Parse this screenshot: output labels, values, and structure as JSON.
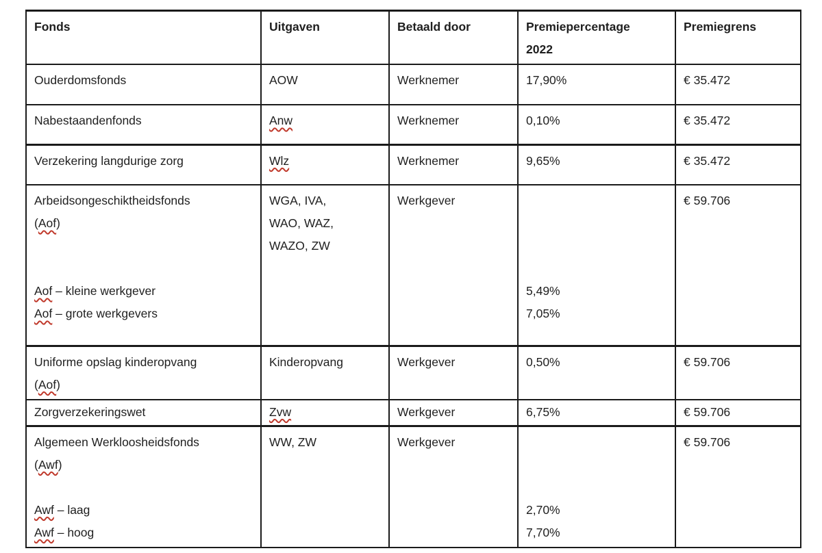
{
  "colors": {
    "misspell_underline": "#c0392b",
    "border": "#1a1a1a",
    "text": "#1f1f1f"
  },
  "table": {
    "headers": [
      {
        "id": "fonds",
        "label": "Fonds",
        "lines": [
          [
            "Fonds"
          ]
        ]
      },
      {
        "id": "uitgaven",
        "label": "Uitgaven",
        "lines": [
          [
            "Uitgaven"
          ]
        ]
      },
      {
        "id": "betaald-door",
        "label": "Betaald door",
        "lines": [
          [
            "Betaald door"
          ]
        ]
      },
      {
        "id": "premiepercentage-2022",
        "label": "Premiepercentage 2022",
        "lines": [
          [
            "Premiepercentage"
          ],
          [
            "2022"
          ]
        ]
      },
      {
        "id": "premiegrens",
        "label": "Premiegrens",
        "lines": [
          [
            "Premiegrens"
          ]
        ]
      }
    ],
    "rows": [
      {
        "id": "ouderdomsfonds",
        "cells": [
          [
            [
              "Ouderdomsfonds"
            ]
          ],
          [
            [
              "AOW"
            ]
          ],
          [
            [
              "Werknemer"
            ]
          ],
          [
            [
              "17,90%"
            ]
          ],
          [
            [
              "€ 35.472"
            ]
          ]
        ]
      },
      {
        "id": "nabestaandenfonds",
        "cells": [
          [
            [
              "Nabestaandenfonds"
            ]
          ],
          [
            [
              {
                "t": "Anw",
                "m": true
              }
            ]
          ],
          [
            [
              "Werknemer"
            ]
          ],
          [
            [
              "0,10%"
            ]
          ],
          [
            [
              "€ 35.472"
            ]
          ]
        ]
      },
      {
        "id": "verzekering-langdurige-zorg",
        "cells": [
          [
            [
              "Verzekering langdurige zorg"
            ]
          ],
          [
            [
              {
                "t": "Wlz",
                "m": true
              }
            ]
          ],
          [
            [
              "Werknemer"
            ]
          ],
          [
            [
              "9,65%"
            ]
          ],
          [
            [
              "€ 35.472"
            ]
          ]
        ]
      },
      {
        "id": "arbeidsongeschiktheidsfonds",
        "cells": [
          [
            [
              "Arbeidsongeschiktheidsfonds"
            ],
            [
              "(",
              {
                "t": "Aof",
                "m": true
              },
              ")"
            ],
            [],
            [],
            [
              {
                "t": "Aof",
                "m": true
              },
              " – kleine werkgever"
            ],
            [
              {
                "t": "Aof",
                "m": true
              },
              " – grote werkgevers"
            ]
          ],
          [
            [
              "WGA, IVA,"
            ],
            [
              "WAO, WAZ,"
            ],
            [
              "WAZO, ZW"
            ]
          ],
          [
            [
              "Werkgever"
            ]
          ],
          [
            [],
            [],
            [],
            [],
            [
              "5,49%"
            ],
            [
              "7,05%"
            ]
          ],
          [
            [
              "€ 59.706"
            ]
          ]
        ]
      },
      {
        "id": "uniforme-opslag-kinderopvang",
        "cells": [
          [
            [
              "Uniforme opslag kinderopvang"
            ],
            [
              "(",
              {
                "t": "Aof",
                "m": true
              },
              ")"
            ]
          ],
          [
            [
              "Kinderopvang"
            ]
          ],
          [
            [
              "Werkgever"
            ]
          ],
          [
            [
              "0,50%"
            ]
          ],
          [
            [
              "€ 59.706"
            ]
          ]
        ]
      },
      {
        "id": "zorgverzekeringswet",
        "cells": [
          [
            [
              "Zorgverzekeringswet"
            ]
          ],
          [
            [
              {
                "t": "Zvw",
                "m": true
              }
            ]
          ],
          [
            [
              "Werkgever"
            ]
          ],
          [
            [
              "6,75%"
            ]
          ],
          [
            [
              "€ 59.706"
            ]
          ]
        ]
      },
      {
        "id": "algemeen-werkloosheidsfonds",
        "cells": [
          [
            [
              "Algemeen Werkloosheidsfonds"
            ],
            [
              "(",
              {
                "t": "Awf",
                "m": true
              },
              ")"
            ],
            [],
            [
              {
                "t": "Awf",
                "m": true
              },
              " – laag"
            ],
            [
              {
                "t": "Awf",
                "m": true
              },
              " – hoog"
            ]
          ],
          [
            [
              "WW, ZW"
            ]
          ],
          [
            [
              "Werkgever"
            ]
          ],
          [
            [],
            [],
            [],
            [
              "2,70%"
            ],
            [
              "7,70%"
            ]
          ],
          [
            [
              "€ 59.706"
            ]
          ]
        ]
      }
    ]
  }
}
